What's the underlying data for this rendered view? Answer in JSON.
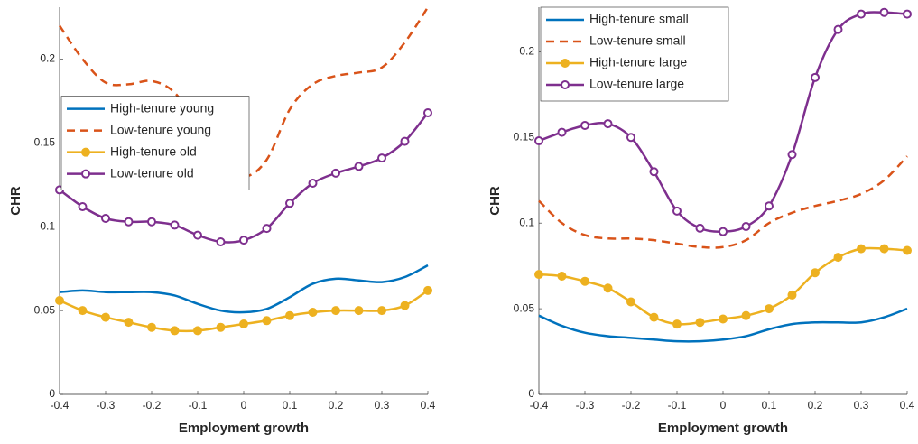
{
  "chart_data": [
    {
      "type": "line",
      "xlabel": "Employment growth",
      "ylabel": "CHR",
      "x": [
        -0.4,
        -0.35,
        -0.3,
        -0.25,
        -0.2,
        -0.15,
        -0.1,
        -0.05,
        0,
        0.05,
        0.1,
        0.15,
        0.2,
        0.25,
        0.3,
        0.35,
        0.4
      ],
      "xlim": [
        -0.4,
        0.4
      ],
      "xticks": [
        -0.4,
        -0.3,
        -0.2,
        -0.1,
        0,
        0.1,
        0.2,
        0.3,
        0.4
      ],
      "ylim": [
        0,
        0.231
      ],
      "yticks": [
        0,
        0.05,
        0.1,
        0.15,
        0.2
      ],
      "legend": "west",
      "series": [
        {
          "name": "High-tenure young",
          "color": "#0072BD",
          "values": [
            0.061,
            0.062,
            0.061,
            0.061,
            0.061,
            0.059,
            0.054,
            0.05,
            0.049,
            0.051,
            0.058,
            0.066,
            0.069,
            0.068,
            0.067,
            0.07,
            0.077
          ]
        },
        {
          "name": "Low-tenure young",
          "color": "#D95319",
          "dashed": true,
          "values": [
            0.22,
            0.2,
            0.186,
            0.185,
            0.187,
            0.18,
            0.16,
            0.14,
            0.13,
            0.14,
            0.17,
            0.185,
            0.19,
            0.192,
            0.195,
            0.21,
            0.231
          ]
        },
        {
          "name": "High-tenure old",
          "color": "#EDB120",
          "marker": "o",
          "filled": true,
          "values": [
            0.056,
            0.05,
            0.046,
            0.043,
            0.04,
            0.038,
            0.038,
            0.04,
            0.042,
            0.044,
            0.047,
            0.049,
            0.05,
            0.05,
            0.05,
            0.053,
            0.062
          ]
        },
        {
          "name": "Low-tenure old",
          "color": "#7E2F8E",
          "marker": "o",
          "filled": false,
          "values": [
            0.122,
            0.112,
            0.105,
            0.103,
            0.103,
            0.101,
            0.095,
            0.091,
            0.092,
            0.099,
            0.114,
            0.126,
            0.132,
            0.136,
            0.141,
            0.151,
            0.168
          ]
        }
      ]
    },
    {
      "type": "line",
      "xlabel": "Employment growth",
      "ylabel": "CHR",
      "x": [
        -0.4,
        -0.35,
        -0.3,
        -0.25,
        -0.2,
        -0.15,
        -0.1,
        -0.05,
        0,
        0.05,
        0.1,
        0.15,
        0.2,
        0.25,
        0.3,
        0.35,
        0.4
      ],
      "xlim": [
        -0.4,
        0.4
      ],
      "xticks": [
        -0.4,
        -0.3,
        -0.2,
        -0.1,
        0,
        0.1,
        0.2,
        0.3,
        0.4
      ],
      "ylim": [
        0,
        0.226
      ],
      "yticks": [
        0,
        0.05,
        0.1,
        0.15,
        0.2
      ],
      "legend": "northwest",
      "series": [
        {
          "name": "High-tenure small",
          "color": "#0072BD",
          "values": [
            0.046,
            0.04,
            0.036,
            0.034,
            0.033,
            0.032,
            0.031,
            0.031,
            0.032,
            0.034,
            0.038,
            0.041,
            0.042,
            0.042,
            0.042,
            0.045,
            0.05
          ]
        },
        {
          "name": "Low-tenure small",
          "color": "#D95319",
          "dashed": true,
          "values": [
            0.113,
            0.1,
            0.093,
            0.091,
            0.091,
            0.09,
            0.088,
            0.086,
            0.086,
            0.09,
            0.1,
            0.106,
            0.11,
            0.113,
            0.117,
            0.125,
            0.139
          ]
        },
        {
          "name": "High-tenure large",
          "color": "#EDB120",
          "marker": "o",
          "filled": true,
          "values": [
            0.07,
            0.069,
            0.066,
            0.062,
            0.054,
            0.045,
            0.041,
            0.042,
            0.044,
            0.046,
            0.05,
            0.058,
            0.071,
            0.08,
            0.085,
            0.085,
            0.084
          ]
        },
        {
          "name": "Low-tenure large",
          "color": "#7E2F8E",
          "marker": "o",
          "filled": false,
          "values": [
            0.148,
            0.153,
            0.157,
            0.158,
            0.15,
            0.13,
            0.107,
            0.097,
            0.095,
            0.098,
            0.11,
            0.14,
            0.185,
            0.213,
            0.222,
            0.223,
            0.222
          ]
        }
      ]
    }
  ]
}
